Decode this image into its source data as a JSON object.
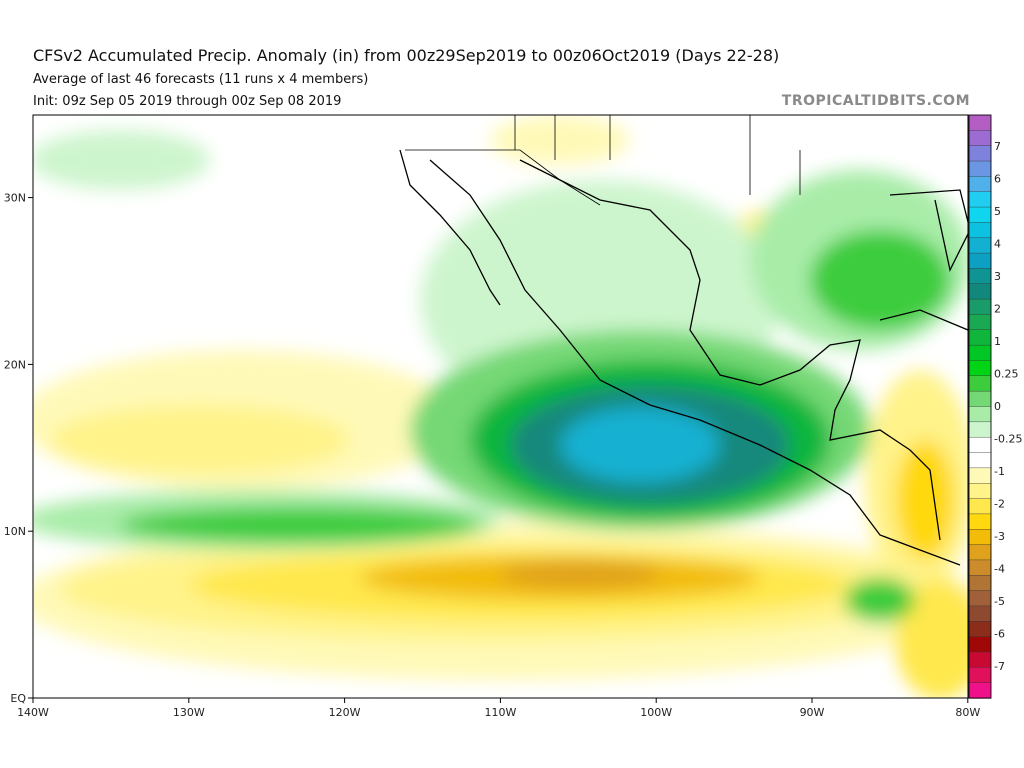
{
  "header": {
    "title": "CFSv2 Accumulated Precip. Anomaly (in) from 00z29Sep2019 to 00z06Oct2019 (Days 22-28)",
    "subtitle": "Average of last 46 forecasts (11 runs x 4 members)",
    "init": "Init: 09z Sep 05 2019 through 00z Sep 08 2019",
    "watermark": "TROPICALTIDBITS.COM"
  },
  "map": {
    "lon_labels": [
      "140W",
      "130W",
      "120W",
      "110W",
      "100W",
      "90W",
      "80W"
    ],
    "lat_labels": [
      "EQ",
      "10N",
      "20N",
      "30N"
    ],
    "region": "Eastern Pacific / Mexico / Central America"
  },
  "colorbar": {
    "unit": "in",
    "labels": [
      "7",
      "6",
      "5",
      "4",
      "3",
      "2",
      "1",
      "0.25",
      "0",
      "-0.25",
      "-1",
      "-2",
      "-3",
      "-4",
      "-5",
      "-6",
      "-7"
    ],
    "colors": [
      "#b45ec4",
      "#9c6cd2",
      "#7f82dc",
      "#6a96e4",
      "#4fb0ec",
      "#22cdf2",
      "#0fd6ee",
      "#0cc2e0",
      "#14b0d2",
      "#0ea0c2",
      "#0f9494",
      "#12887c",
      "#1a9c6a",
      "#1aa852",
      "#10b63c",
      "#00c626",
      "#00d414",
      "#3ccc3c",
      "#74d874",
      "#a8eca8",
      "#cdf5cd",
      "#ffffff",
      "#ffffff",
      "#fff9b8",
      "#fff38a",
      "#ffe84e",
      "#ffd810",
      "#f2bc08",
      "#e0a21c",
      "#cc8c2c",
      "#b07434",
      "#a0603a",
      "#8e4a30",
      "#8c2c1a",
      "#a00808",
      "#c80a32",
      "#e0105a",
      "#f0108a"
    ]
  }
}
